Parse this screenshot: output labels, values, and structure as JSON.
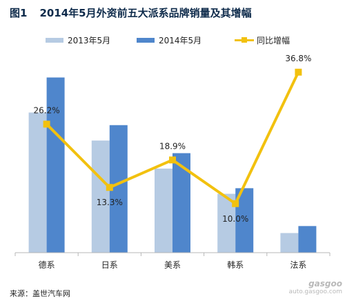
{
  "title": {
    "number": "图1",
    "text": "2014年5月外资前五大派系品牌销量及其增幅"
  },
  "source": "来源：盖世汽车网",
  "watermark": {
    "logo": "gasgoo",
    "url": "auto.gasgoo.com"
  },
  "colors": {
    "s2013": "#b6cbe3",
    "s2014": "#4f86cc",
    "growth": "#f2c10f",
    "axis": "#b7b7b7"
  },
  "chart_data": {
    "type": "bar",
    "categories": [
      "德系",
      "日系",
      "美系",
      "韩系",
      "法系"
    ],
    "series": [
      {
        "name": "2013年5月",
        "kind": "bar",
        "values": [
          100,
          80,
          60,
          42,
          14
        ]
      },
      {
        "name": "2014年5月",
        "kind": "bar",
        "values": [
          125,
          91,
          71,
          46,
          19
        ]
      },
      {
        "name": "同比增幅",
        "kind": "line",
        "marker": "square",
        "values": [
          26.2,
          13.3,
          18.9,
          10.0,
          36.8
        ],
        "labels": [
          "26.2%",
          "13.3%",
          "18.9%",
          "10.0%",
          "36.8%"
        ]
      }
    ],
    "ylim_bars": [
      0,
      140
    ],
    "ylim_growth": [
      0,
      40
    ],
    "legend_position": "top"
  }
}
